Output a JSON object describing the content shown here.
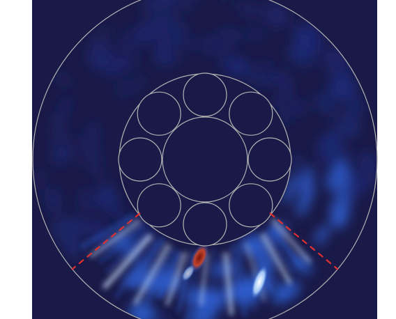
{
  "figure": {
    "description_name": "fiber-cross-section-field-map",
    "colors": {
      "page_background": "#ffffff",
      "field_background": "#1a1a48",
      "field_low": "#1c2a78",
      "field_mid": "#2f5fd0",
      "field_high": "#cfe4ff",
      "hotspot_core": "#8a1a0c",
      "hotspot_edge": "#e0705a",
      "outline": "#b4b4b4",
      "marker_line": "#e03030"
    },
    "capillary_ring": {
      "count": 8
    },
    "marker_lines": {
      "style": "dashed",
      "count": 2
    }
  }
}
